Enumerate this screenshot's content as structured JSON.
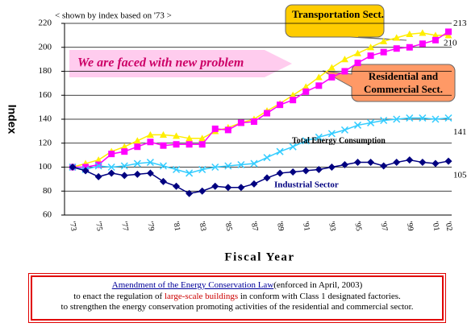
{
  "chart_data": {
    "type": "line",
    "subtitle": "< shown by index based on '73 >",
    "ylabel": "Index",
    "xlabel": "Fiscal Year",
    "banner": "We are faced with new problem",
    "categories": [
      "'73",
      null,
      "'75",
      null,
      "'77",
      null,
      "'79",
      null,
      "'81",
      null,
      "'83",
      null,
      "'85",
      null,
      "'87",
      null,
      "'89",
      null,
      "'91",
      null,
      "'93",
      null,
      "'95",
      null,
      "'97",
      null,
      "'99",
      null,
      "'01",
      "'02"
    ],
    "ylim": [
      60,
      220
    ],
    "yticks": [
      60,
      80,
      100,
      120,
      140,
      160,
      180,
      200,
      220
    ],
    "grid": true,
    "series": [
      {
        "name": "Transportation Sect.",
        "color": "#ffee00",
        "marker": "triangle",
        "values": [
          100,
          103,
          106,
          113,
          117,
          122,
          127,
          127,
          126,
          124,
          124,
          130,
          133,
          137,
          140,
          147,
          153,
          160,
          167,
          175,
          183,
          190,
          195,
          200,
          205,
          208,
          211,
          212,
          210,
          210
        ]
      },
      {
        "name": "Residential and Commercial Sect.",
        "color": "#ff00ff",
        "marker": "square",
        "values": [
          100,
          100,
          102,
          111,
          113,
          117,
          121,
          118,
          119,
          119,
          119,
          132,
          131,
          137,
          138,
          145,
          152,
          156,
          163,
          168,
          175,
          180,
          187,
          193,
          196,
          199,
          200,
          203,
          206,
          213
        ]
      },
      {
        "name": "Total Energy Consumption",
        "color": "#33ccff",
        "marker": "x",
        "values": [
          100,
          98,
          101,
          100,
          101,
          103,
          104,
          101,
          98,
          95,
          98,
          100,
          101,
          102,
          103,
          108,
          113,
          117,
          122,
          125,
          128,
          131,
          135,
          137,
          139,
          140,
          141,
          141,
          140,
          141
        ]
      },
      {
        "name": "Industrial Sector",
        "color": "#000080",
        "marker": "diamond",
        "values": [
          100,
          97,
          92,
          95,
          93,
          94,
          95,
          88,
          84,
          78,
          80,
          84,
          83,
          83,
          86,
          91,
          95,
          96,
          97,
          98,
          100,
          102,
          104,
          104,
          101,
          104,
          106,
          104,
          103,
          105
        ]
      }
    ]
  },
  "note": {
    "law": "Amendment of the Energy Conservation Law",
    "law_suffix": "(enforced in April, 2003)",
    "line1_pre": "to enact the regulation of",
    "line1_red": "large-scale buildings",
    "line1_post": "in conform with Class 1 designated factories.",
    "line2": "to strengthen the energy conservation promoting activities of the residential and commercial sector."
  }
}
